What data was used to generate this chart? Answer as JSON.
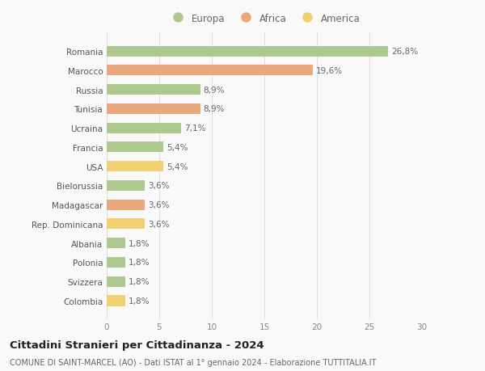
{
  "categories": [
    "Romania",
    "Marocco",
    "Russia",
    "Tunisia",
    "Ucraina",
    "Francia",
    "USA",
    "Bielorussia",
    "Madagascar",
    "Rep. Dominicana",
    "Albania",
    "Polonia",
    "Svizzera",
    "Colombia"
  ],
  "values": [
    26.8,
    19.6,
    8.9,
    8.9,
    7.1,
    5.4,
    5.4,
    3.6,
    3.6,
    3.6,
    1.8,
    1.8,
    1.8,
    1.8
  ],
  "labels": [
    "26,8%",
    "19,6%",
    "8,9%",
    "8,9%",
    "7,1%",
    "5,4%",
    "5,4%",
    "3,6%",
    "3,6%",
    "3,6%",
    "1,8%",
    "1,8%",
    "1,8%",
    "1,8%"
  ],
  "colors": [
    "#adc990",
    "#e8a87c",
    "#adc990",
    "#e8a87c",
    "#adc990",
    "#adc990",
    "#f0d070",
    "#adc990",
    "#e8a87c",
    "#f0d070",
    "#adc990",
    "#adc990",
    "#adc990",
    "#f0d070"
  ],
  "legend_labels": [
    "Europa",
    "Africa",
    "America"
  ],
  "legend_colors": [
    "#adc990",
    "#e8a87c",
    "#f0d070"
  ],
  "title": "Cittadini Stranieri per Cittadinanza - 2024",
  "subtitle": "COMUNE DI SAINT-MARCEL (AO) - Dati ISTAT al 1° gennaio 2024 - Elaborazione TUTTITALIA.IT",
  "xlim": [
    0,
    30
  ],
  "xticks": [
    0,
    5,
    10,
    15,
    20,
    25,
    30
  ],
  "background_color": "#f9f9f9",
  "grid_color": "#e0e0e0",
  "bar_height": 0.55,
  "label_fontsize": 7.5,
  "tick_fontsize": 7.5,
  "title_fontsize": 9.5,
  "subtitle_fontsize": 7.0,
  "legend_fontsize": 8.5
}
